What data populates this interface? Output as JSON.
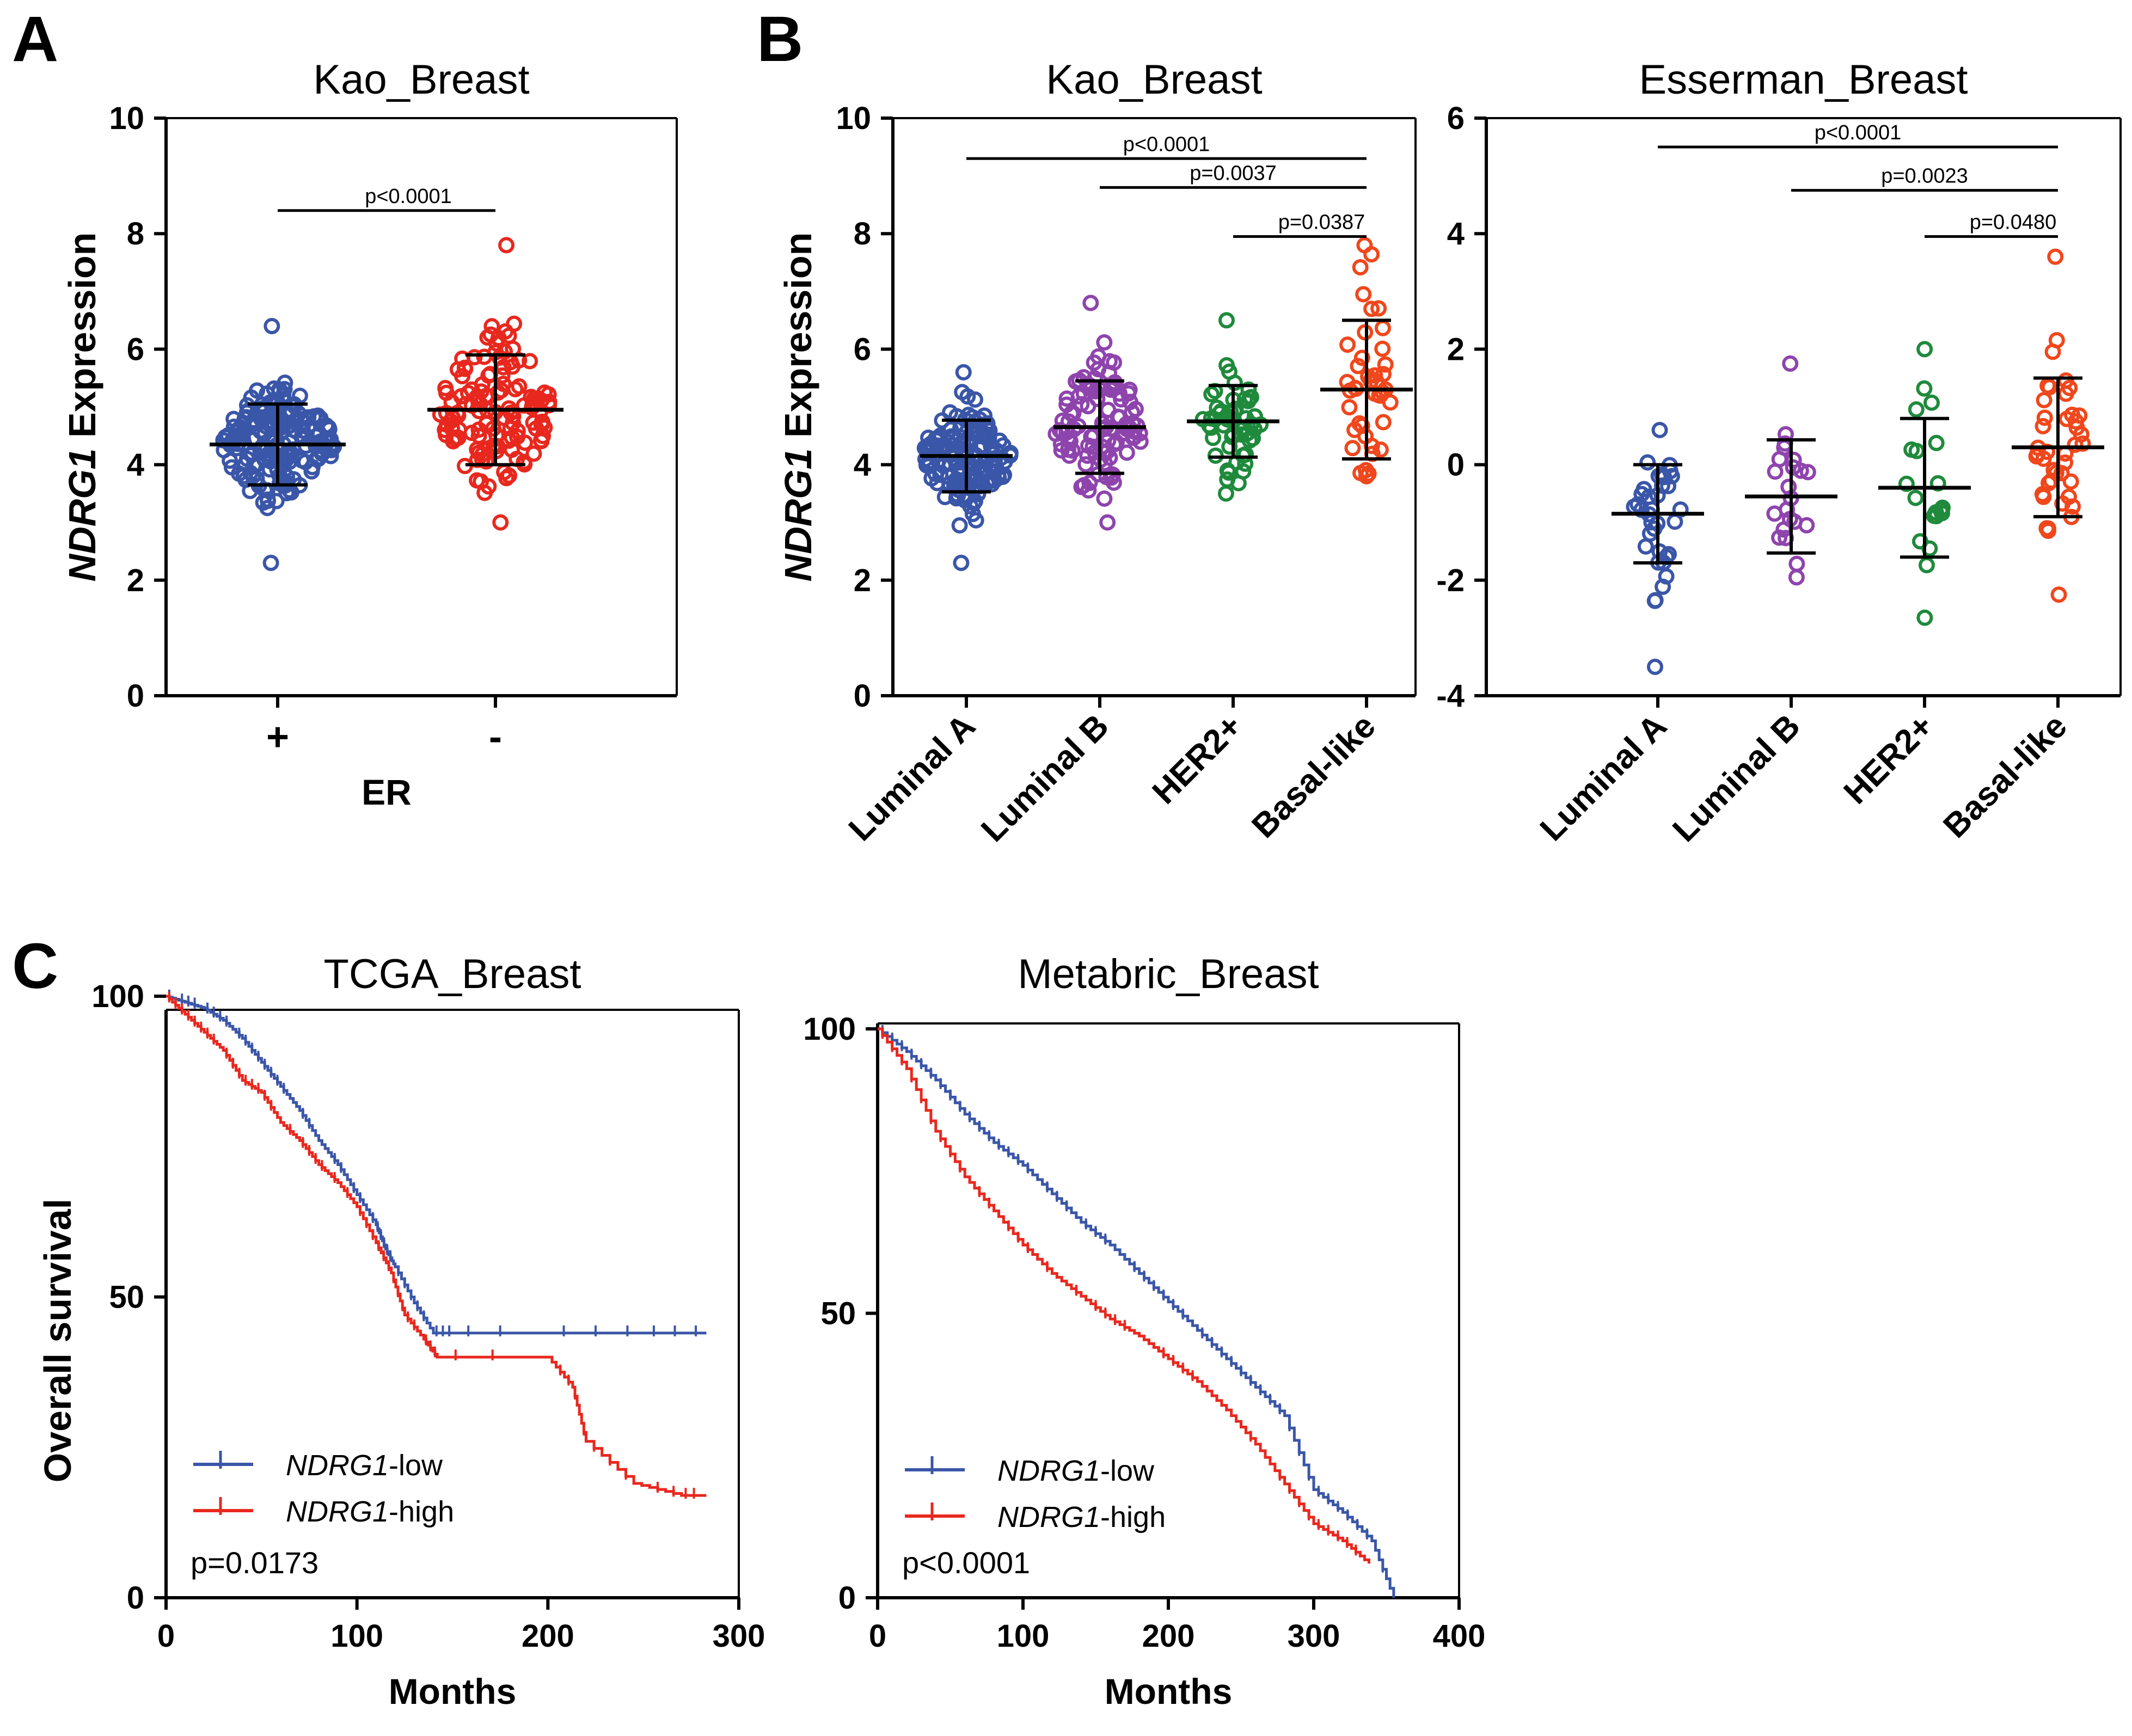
{
  "panel_letters": {
    "a": "A",
    "b": "B",
    "c": "C"
  },
  "colors": {
    "blue": "#3a56a8",
    "red": "#e8281e",
    "purple": "#8e44ad",
    "green": "#1f8a3c",
    "orange": "#f0471c",
    "black": "#000000"
  },
  "chart_data": [
    {
      "id": "A",
      "type": "scatter",
      "title": "Kao_Breast",
      "ylabel_gene": "NDRG1",
      "ylabel_suffix": " Expression",
      "xlabel": "ER",
      "ylim": [
        0,
        10
      ],
      "yticks": [
        0,
        2,
        4,
        6,
        8,
        10
      ],
      "categories": [
        "+",
        "-"
      ],
      "groups": [
        {
          "name": "+",
          "color": "blue",
          "n": 190,
          "mean": 4.35,
          "sd": 0.7,
          "min": 2.3,
          "max": 6.4
        },
        {
          "name": "-",
          "color": "red",
          "n": 130,
          "mean": 4.95,
          "sd": 0.95,
          "min": 3.0,
          "max": 7.8
        }
      ],
      "comparisons": [
        {
          "from": 0,
          "to": 1,
          "label": "p<0.0001",
          "y": 8.4
        }
      ]
    },
    {
      "id": "B1",
      "type": "scatter",
      "title": "Kao_Breast",
      "ylabel_gene": "NDRG1",
      "ylabel_suffix": " Expression",
      "ylim": [
        0,
        10
      ],
      "yticks": [
        0,
        2,
        4,
        6,
        8,
        10
      ],
      "categories": [
        "Luminal A",
        "Luminal B",
        "HER2+",
        "Basal-like"
      ],
      "groups": [
        {
          "name": "Luminal A",
          "color": "blue",
          "n": 150,
          "mean": 4.15,
          "sd": 0.62,
          "min": 2.3,
          "max": 5.6
        },
        {
          "name": "Luminal B",
          "color": "purple",
          "n": 110,
          "mean": 4.65,
          "sd": 0.8,
          "min": 3.0,
          "max": 6.8
        },
        {
          "name": "HER2+",
          "color": "green",
          "n": 55,
          "mean": 4.75,
          "sd": 0.62,
          "min": 3.5,
          "max": 6.5
        },
        {
          "name": "Basal-like",
          "color": "orange",
          "n": 42,
          "mean": 5.3,
          "sd": 1.2,
          "min": 3.8,
          "max": 7.8
        }
      ],
      "comparisons": [
        {
          "from": 0,
          "to": 3,
          "label": "p<0.0001",
          "y": 9.3
        },
        {
          "from": 1,
          "to": 3,
          "label": "p=0.0037",
          "y": 8.8
        },
        {
          "from": 2,
          "to": 3,
          "label": "p=0.0387",
          "y": 7.95
        }
      ]
    },
    {
      "id": "B2",
      "type": "scatter",
      "title": "Esserman_Breast",
      "ylim": [
        -4,
        6
      ],
      "yticks": [
        -4,
        -2,
        0,
        2,
        4,
        6
      ],
      "categories": [
        "Luminal A",
        "Luminal B",
        "HER2+",
        "Basal-like"
      ],
      "groups": [
        {
          "name": "Luminal A",
          "color": "blue",
          "n": 36,
          "mean": -0.85,
          "sd": 0.85,
          "min": -3.5,
          "max": 0.6
        },
        {
          "name": "Luminal B",
          "color": "purple",
          "n": 22,
          "mean": -0.55,
          "sd": 0.98,
          "min": -1.95,
          "max": 1.75
        },
        {
          "name": "HER2+",
          "color": "green",
          "n": 20,
          "mean": -0.4,
          "sd": 1.2,
          "min": -2.65,
          "max": 2.0
        },
        {
          "name": "Basal-like",
          "color": "orange",
          "n": 42,
          "mean": 0.3,
          "sd": 1.2,
          "min": -2.25,
          "max": 3.6
        }
      ],
      "comparisons": [
        {
          "from": 0,
          "to": 3,
          "label": "p<0.0001",
          "y": 5.5
        },
        {
          "from": 1,
          "to": 3,
          "label": "p=0.0023",
          "y": 4.75
        },
        {
          "from": 2,
          "to": 3,
          "label": "p=0.0480",
          "y": 3.95
        }
      ]
    },
    {
      "id": "C1",
      "type": "line",
      "title": "TCGA_Breast",
      "ylabel": "Overall survival",
      "xlabel": "Months",
      "xlim": [
        0,
        300
      ],
      "ylim": [
        0,
        100
      ],
      "xticks": [
        0,
        100,
        200,
        300
      ],
      "yticks": [
        0,
        50,
        100
      ],
      "pvalue": "p=0.0173",
      "series": [
        {
          "name": "NDRG1-low",
          "gene": "NDRG1",
          "suffix": "-low",
          "color": "blue",
          "x": [
            0,
            10,
            20,
            30,
            40,
            50,
            60,
            70,
            80,
            90,
            100,
            110,
            115,
            120,
            130,
            140,
            150,
            200,
            250,
            283
          ],
          "y": [
            100,
            99,
            98,
            96,
            93,
            89,
            85,
            81,
            76,
            72,
            67,
            62,
            58,
            55,
            49,
            44,
            44,
            44,
            44,
            44
          ]
        },
        {
          "name": "NDRG1-high",
          "gene": "NDRG1",
          "suffix": "-high",
          "color": "red",
          "x": [
            0,
            10,
            20,
            30,
            40,
            50,
            60,
            70,
            80,
            90,
            100,
            110,
            118,
            125,
            135,
            142,
            200,
            213,
            220,
            245,
            270,
            283
          ],
          "y": [
            100,
            97,
            94,
            91,
            86,
            84,
            79,
            76,
            72,
            69,
            65,
            59,
            54,
            47,
            43,
            40,
            40,
            35,
            26,
            19,
            17,
            17
          ]
        }
      ]
    },
    {
      "id": "C2",
      "type": "line",
      "title": "Metabric_Breast",
      "xlabel": "Months",
      "xlim": [
        0,
        400
      ],
      "ylim": [
        0,
        100
      ],
      "xticks": [
        0,
        100,
        200,
        300,
        400
      ],
      "yticks": [
        0,
        50,
        100
      ],
      "pvalue": "p<0.0001",
      "series": [
        {
          "name": "NDRG1-low",
          "gene": "NDRG1",
          "suffix": "-low",
          "color": "blue",
          "x": [
            0,
            20,
            40,
            60,
            80,
            100,
            120,
            140,
            160,
            180,
            200,
            220,
            240,
            260,
            280,
            300,
            320,
            340,
            355
          ],
          "y": [
            100,
            96,
            91,
            85,
            80,
            76,
            71,
            66,
            62,
            57,
            52,
            47,
            42,
            37,
            32,
            19,
            15,
            10,
            0
          ]
        },
        {
          "name": "NDRG1-high",
          "gene": "NDRG1",
          "suffix": "-high",
          "color": "red",
          "x": [
            0,
            20,
            40,
            60,
            80,
            100,
            120,
            140,
            160,
            180,
            200,
            220,
            240,
            260,
            280,
            300,
            320,
            338
          ],
          "y": [
            100,
            93,
            82,
            74,
            68,
            62,
            57,
            53,
            49,
            46,
            42,
            38,
            33,
            27,
            20,
            13,
            10,
            6
          ]
        }
      ]
    }
  ]
}
